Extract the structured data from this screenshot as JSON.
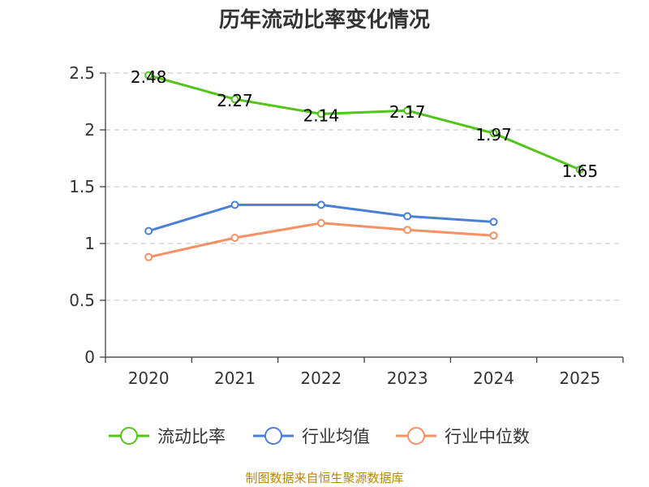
{
  "chart_data": {
    "type": "line",
    "title": "历年流动比率变化情况",
    "categories": [
      "2020",
      "2021",
      "2022",
      "2023",
      "2024",
      "2025"
    ],
    "ylim": [
      0,
      2.5
    ],
    "yticks": [
      "0",
      "0.5",
      "1",
      "1.5",
      "2",
      "2.5"
    ],
    "grid": true,
    "legend_position": "bottom",
    "series": [
      {
        "name": "流动比率",
        "color": "#52c41a",
        "values": [
          2.48,
          2.27,
          2.14,
          2.17,
          1.97,
          1.65
        ],
        "labels": [
          "2.48",
          "2.27",
          "2.14",
          "2.17",
          "1.97",
          "1.65"
        ],
        "show_labels": true
      },
      {
        "name": "行业均值",
        "color": "#4a7fd6",
        "values": [
          1.11,
          1.34,
          1.34,
          1.24,
          1.19,
          null
        ],
        "show_labels": false
      },
      {
        "name": "行业中位数",
        "color": "#f79063",
        "values": [
          0.88,
          1.05,
          1.18,
          1.12,
          1.07,
          null
        ],
        "show_labels": false
      }
    ]
  },
  "footer": "制图数据来自恒生聚源数据库"
}
